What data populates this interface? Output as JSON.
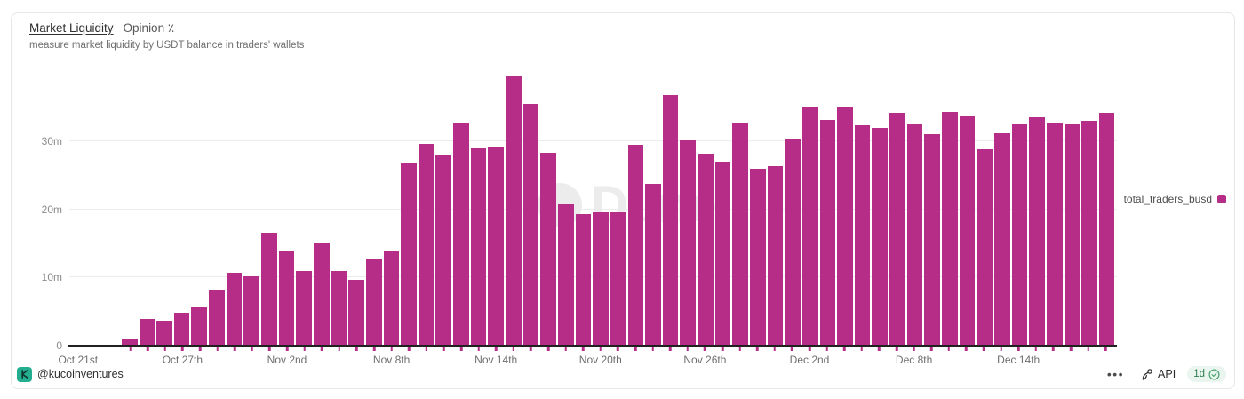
{
  "card": {
    "title": "Market Liquidity",
    "title_suffix": "Opinion ٪",
    "subtitle": "measure market liquidity by USDT balance in traders' wallets",
    "watermark": "Dune"
  },
  "chart_data": {
    "type": "bar",
    "title": "Market Liquidity — Opinion",
    "ylabel": "USDT balance in traders' wallets",
    "unit": "m = millions",
    "ylim": [
      0,
      40
    ],
    "grid": "horizontal",
    "legend_position": "right",
    "y_ticks": [
      "0",
      "10m",
      "20m",
      "30m"
    ],
    "x_tick_labels": [
      "Oct 21st",
      "Oct 27th",
      "Nov 2nd",
      "Nov 8th",
      "Nov 14th",
      "Nov 20th",
      "Nov 26th",
      "Dec 2nd",
      "Dec 8th",
      "Dec 14th"
    ],
    "x_tick_every": 6,
    "x_start": "Oct 21st",
    "x_end": "Dec 19th",
    "series": [
      {
        "name": "total_traders_busd",
        "color": "#b62d88",
        "values": [
          0.05,
          0.05,
          0.1,
          1.0,
          3.9,
          3.7,
          4.8,
          5.6,
          8.2,
          10.7,
          10.2,
          16.6,
          13.9,
          10.9,
          15.1,
          10.9,
          9.7,
          12.8,
          13.9,
          26.8,
          29.6,
          28.0,
          32.7,
          29.0,
          29.2,
          39.5,
          35.5,
          28.3,
          20.7,
          19.3,
          19.6,
          19.5,
          29.4,
          23.7,
          36.7,
          30.2,
          28.1,
          27.0,
          32.7,
          25.9,
          26.3,
          30.4,
          35.0,
          33.1,
          35.1,
          32.3,
          31.9,
          34.2,
          32.6,
          31.0,
          34.3,
          33.7,
          28.8,
          31.1,
          32.6,
          33.5,
          32.7,
          32.4,
          33.0,
          34.1
        ]
      }
    ]
  },
  "legend": {
    "label": "total_traders_busd"
  },
  "footer": {
    "author": "@kucoinventures",
    "menu_dots": "•••",
    "api_label": "API",
    "refresh_badge": "1d"
  },
  "colors": {
    "bar": "#b62d88",
    "gridline": "#ececec",
    "baseline": "#212121",
    "badge_bg": "#e9f5ee",
    "badge_text": "#2f7e50",
    "avatar_bg": "#23af8f"
  }
}
